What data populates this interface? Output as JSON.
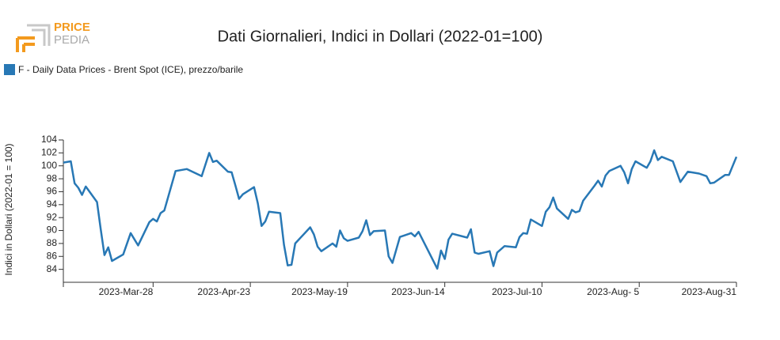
{
  "logo": [
    "PRICE",
    "PEDIA"
  ],
  "chart_data": {
    "type": "line",
    "title": "Dati Giornalieri, Indici in Dollari (2022-01=100)",
    "ylabel": "Indici in Dollari (2022-01 = 100)",
    "xlim": [
      "2023-03-04",
      "2023-08-31"
    ],
    "xticks": [
      {
        "value": "2023-03-28",
        "label": "2023-Mar-28"
      },
      {
        "value": "2023-04-23",
        "label": "2023-Apr-23"
      },
      {
        "value": "2023-05-19",
        "label": "2023-May-19"
      },
      {
        "value": "2023-06-14",
        "label": "2023-Jun-14"
      },
      {
        "value": "2023-07-10",
        "label": "2023-Jul-10"
      },
      {
        "value": "2023-08-05",
        "label": "2023-Aug- 5"
      },
      {
        "value": "2023-08-31",
        "label": "2023-Aug-31"
      }
    ],
    "ylim": [
      82,
      104
    ],
    "yticks": [
      84,
      86,
      88,
      90,
      92,
      94,
      96,
      98,
      100,
      102,
      104
    ],
    "x": [
      "2023-03-04",
      "2023-03-06",
      "2023-03-07",
      "2023-03-08",
      "2023-03-09",
      "2023-03-10",
      "2023-03-13",
      "2023-03-14",
      "2023-03-15",
      "2023-03-16",
      "2023-03-17",
      "2023-03-20",
      "2023-03-22",
      "2023-03-24",
      "2023-03-27",
      "2023-03-28",
      "2023-03-29",
      "2023-03-30",
      "2023-03-31",
      "2023-04-03",
      "2023-04-06",
      "2023-04-10",
      "2023-04-12",
      "2023-04-13",
      "2023-04-14",
      "2023-04-17",
      "2023-04-18",
      "2023-04-19",
      "2023-04-20",
      "2023-04-21",
      "2023-04-24",
      "2023-04-25",
      "2023-04-26",
      "2023-04-27",
      "2023-04-28",
      "2023-05-01",
      "2023-05-02",
      "2023-05-03",
      "2023-05-04",
      "2023-05-05",
      "2023-05-09",
      "2023-05-10",
      "2023-05-11",
      "2023-05-12",
      "2023-05-15",
      "2023-05-16",
      "2023-05-17",
      "2023-05-18",
      "2023-05-19",
      "2023-05-22",
      "2023-05-23",
      "2023-05-24",
      "2023-05-25",
      "2023-05-26",
      "2023-05-29",
      "2023-05-30",
      "2023-05-31",
      "2023-06-02",
      "2023-06-05",
      "2023-06-06",
      "2023-06-07",
      "2023-06-12",
      "2023-06-13",
      "2023-06-14",
      "2023-06-15",
      "2023-06-16",
      "2023-06-20",
      "2023-06-21",
      "2023-06-22",
      "2023-06-23",
      "2023-06-26",
      "2023-06-27",
      "2023-06-28",
      "2023-06-30",
      "2023-07-03",
      "2023-07-04",
      "2023-07-05",
      "2023-07-06",
      "2023-07-07",
      "2023-07-10",
      "2023-07-11",
      "2023-07-12",
      "2023-07-13",
      "2023-07-14",
      "2023-07-17",
      "2023-07-18",
      "2023-07-19",
      "2023-07-20",
      "2023-07-21",
      "2023-07-24",
      "2023-07-25",
      "2023-07-26",
      "2023-07-27",
      "2023-07-28",
      "2023-07-31",
      "2023-08-01",
      "2023-08-02",
      "2023-08-03",
      "2023-08-04",
      "2023-08-07",
      "2023-08-08",
      "2023-08-09",
      "2023-08-10",
      "2023-08-11",
      "2023-08-14",
      "2023-08-16",
      "2023-08-18",
      "2023-08-21",
      "2023-08-23",
      "2023-08-24",
      "2023-08-25",
      "2023-08-28",
      "2023-08-29",
      "2023-08-30",
      "2023-08-31"
    ],
    "series": [
      {
        "name": "F - Daily Data Prices - Brent Spot (ICE), prezzo/barile",
        "color": "#2878b5",
        "values": [
          100.5,
          100.7,
          97.3,
          96.6,
          95.5,
          96.8,
          94.4,
          90.2,
          86.2,
          87.4,
          85.3,
          86.3,
          89.6,
          87.7,
          91.3,
          91.8,
          91.4,
          92.7,
          93.1,
          99.2,
          99.5,
          98.4,
          102.0,
          100.6,
          100.8,
          99.1,
          99.0,
          97.0,
          94.9,
          95.6,
          96.7,
          94.2,
          90.7,
          91.4,
          92.9,
          92.7,
          87.8,
          84.6,
          84.7,
          88.0,
          90.5,
          89.4,
          87.5,
          86.8,
          88.0,
          87.5,
          90.0,
          88.8,
          88.4,
          88.9,
          89.9,
          91.6,
          89.3,
          89.9,
          90.0,
          86.0,
          85.0,
          89.0,
          89.6,
          89.1,
          89.8,
          84.1,
          86.9,
          85.6,
          88.6,
          89.5,
          88.9,
          90.2,
          86.6,
          86.4,
          86.8,
          84.5,
          86.6,
          87.6,
          87.4,
          89.0,
          89.6,
          89.5,
          91.7,
          90.7,
          92.9,
          93.6,
          95.1,
          93.4,
          91.8,
          93.2,
          92.8,
          93.0,
          94.6,
          96.9,
          97.7,
          96.8,
          98.5,
          99.2,
          100.0,
          99.0,
          97.3,
          99.5,
          100.7,
          99.7,
          100.7,
          102.4,
          100.9,
          101.4,
          100.7,
          97.5,
          99.1,
          98.8,
          98.4,
          97.3,
          97.4,
          98.6,
          98.6,
          100.0,
          101.4
        ]
      }
    ]
  }
}
